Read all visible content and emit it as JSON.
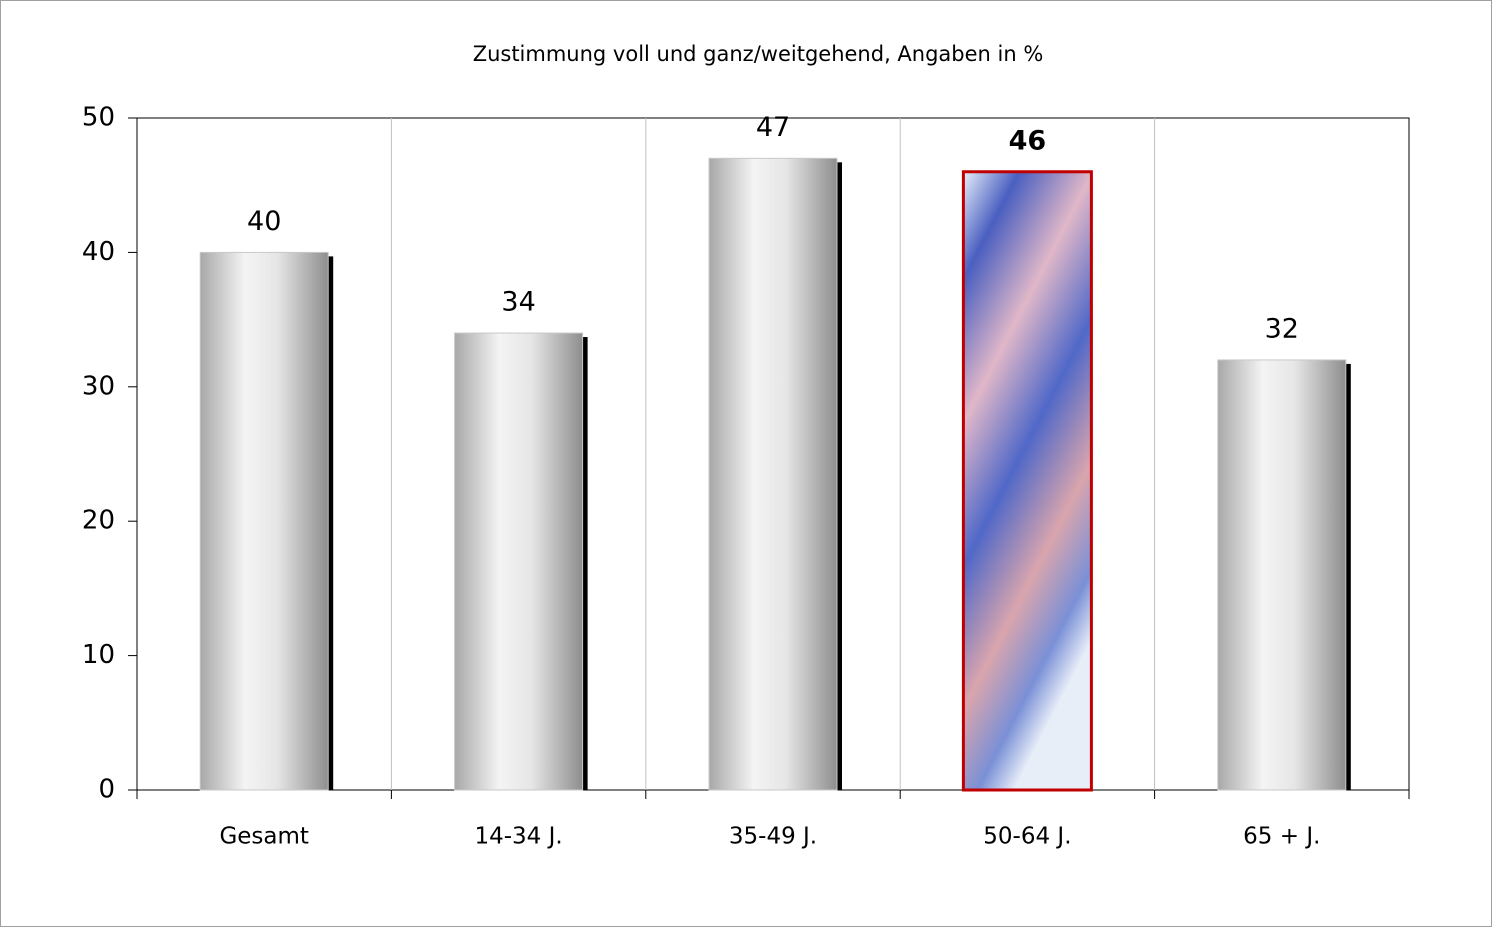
{
  "chart_data": {
    "type": "bar",
    "title": "Zustimmung voll und ganz/weitgehend, Angaben in %",
    "categories": [
      "Gesamt",
      "14-34 J.",
      "35-49 J.",
      "50-64 J.",
      "65 + J."
    ],
    "values": [
      40,
      34,
      47,
      46,
      32
    ],
    "colors": [
      "#c8c8c8",
      "#c8c8c8",
      "#c8c8c8",
      "#8fa3e0",
      "#c8c8c8"
    ],
    "label_colors": [
      "#000000",
      "#000000",
      "#000000",
      "#c00000",
      "#000000"
    ],
    "ylim": [
      0,
      50
    ],
    "yticks": [
      0,
      10,
      20,
      30,
      40,
      50
    ]
  }
}
